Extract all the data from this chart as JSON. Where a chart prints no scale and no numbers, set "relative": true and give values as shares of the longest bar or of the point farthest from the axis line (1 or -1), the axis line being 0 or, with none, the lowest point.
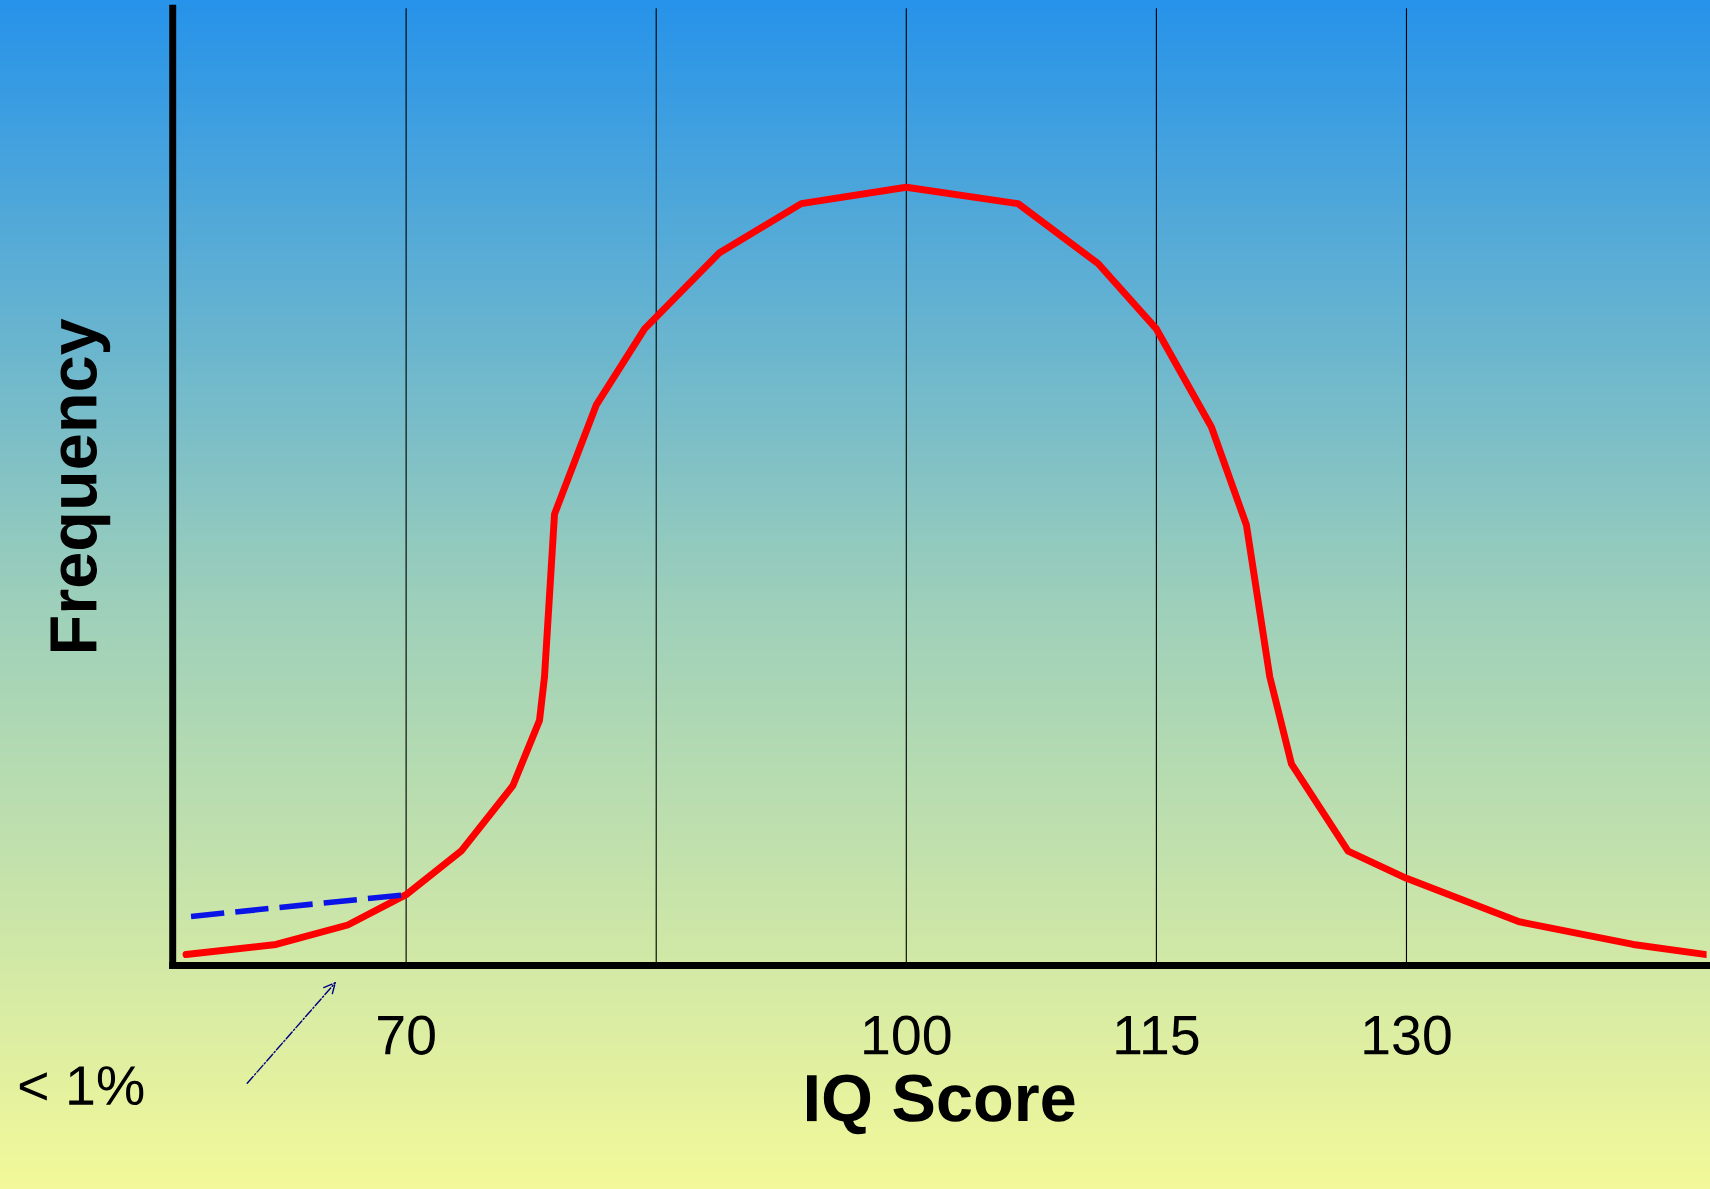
{
  "chart_data": {
    "type": "line",
    "relative": true,
    "xlabel": "IQ Score",
    "ylabel": "Frequency",
    "xlim": [
      56,
      148
    ],
    "xticks": [
      70,
      {
        "value": 85,
        "label": null
      },
      100,
      115,
      130
    ],
    "grid": "x",
    "legend": false,
    "series": [
      {
        "color": "#ff0000",
        "line_style": "solid",
        "x": [
          56.8,
          62.2,
          66.5,
          70,
          73.3,
          76.4,
          78.0,
          78.3,
          78.9,
          81.4,
          84.3,
          88.8,
          93.7,
          100,
          106.7,
          111.5,
          115,
          118.3,
          120.4,
          121.6,
          121.8,
          123.1,
          126.5,
          130,
          136.8,
          143.6,
          148
        ],
        "values": [
          0.014,
          0.027,
          0.052,
          0.091,
          0.147,
          0.231,
          0.315,
          0.371,
          0.58,
          0.72,
          0.818,
          0.916,
          0.979,
          1.0,
          0.979,
          0.902,
          0.818,
          0.692,
          0.566,
          0.399,
          0.371,
          0.259,
          0.147,
          0.112,
          0.056,
          0.027,
          0.014
        ]
      },
      {
        "color": "#0a14e6",
        "line_style": "dashed",
        "x": [
          57.1,
          70
        ],
        "values": [
          0.063,
          0.091
        ]
      }
    ],
    "annotations": [
      "< 1%"
    ]
  }
}
